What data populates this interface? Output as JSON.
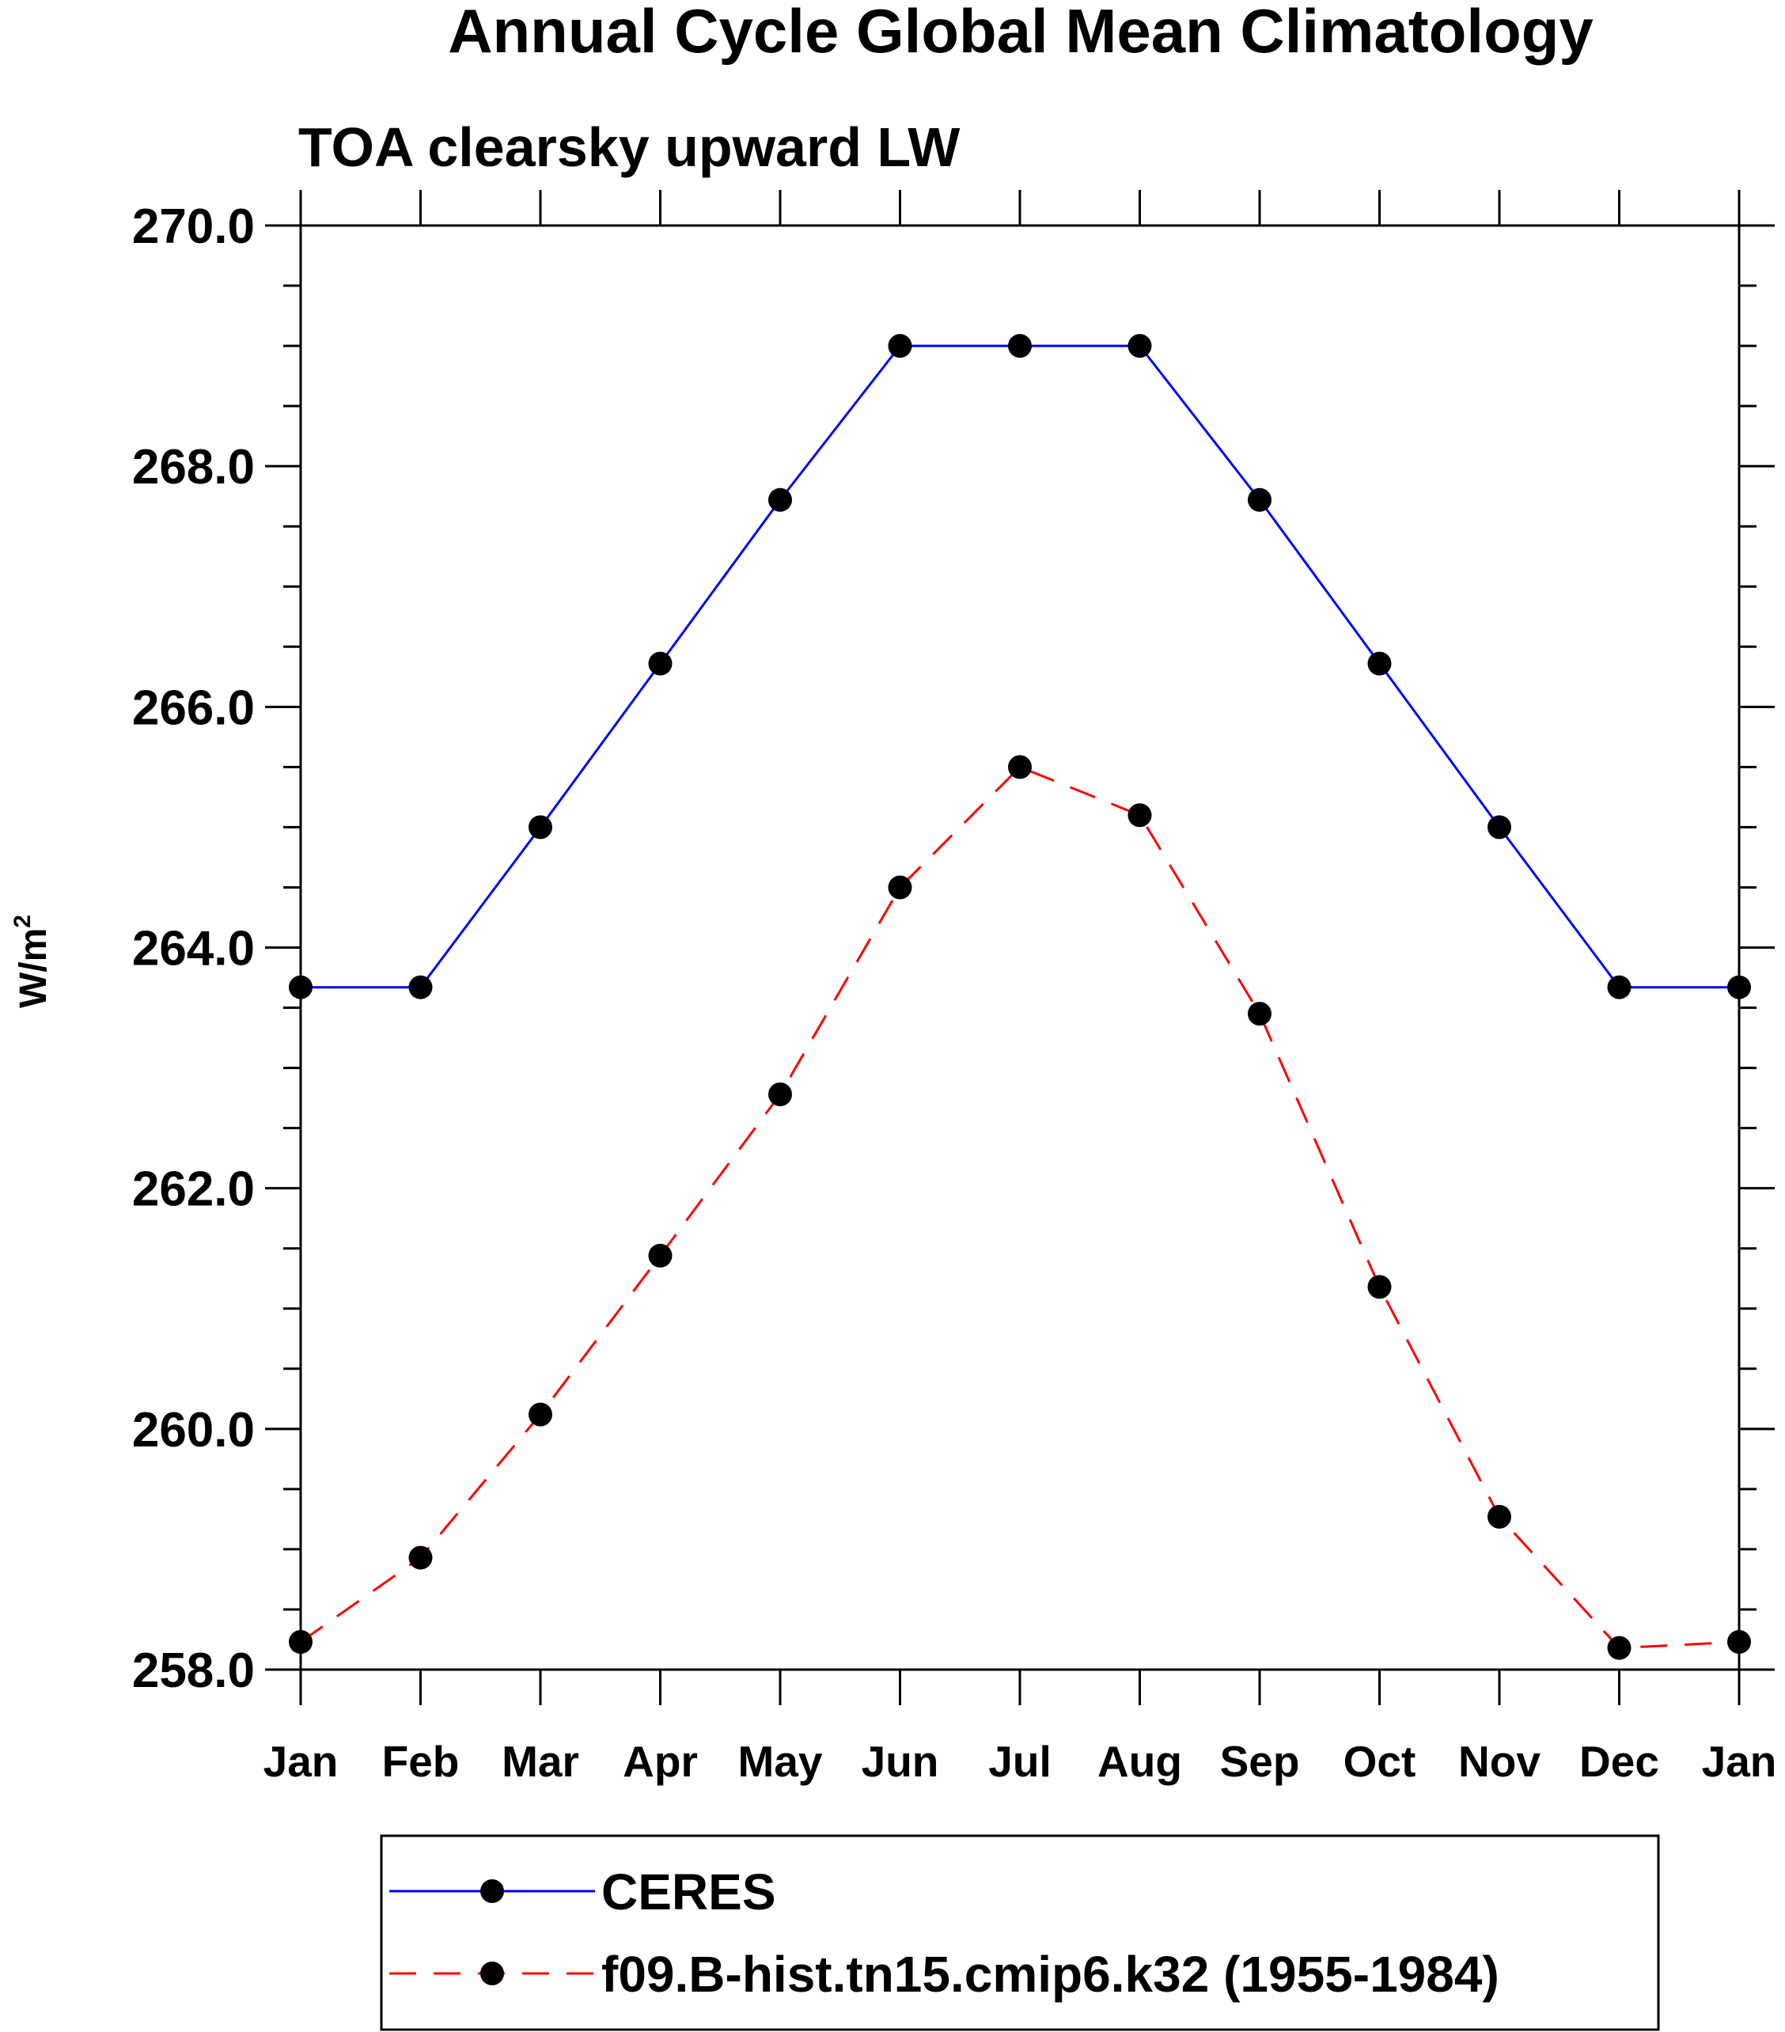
{
  "chart_data": {
    "type": "line",
    "title": "Annual Cycle Global Mean Climatology",
    "subtitle": "TOA clearsky upward LW",
    "ylabel": "W/m",
    "ylabel_superscript": "2",
    "xlabel": "",
    "categories": [
      "Jan",
      "Feb",
      "Mar",
      "Apr",
      "May",
      "Jun",
      "Jul",
      "Aug",
      "Sep",
      "Oct",
      "Nov",
      "Dec",
      "Jan"
    ],
    "ylim": [
      258.0,
      270.0
    ],
    "ytick_values": [
      258.0,
      260.0,
      262.0,
      264.0,
      266.0,
      268.0,
      270.0
    ],
    "ytick_labels": [
      "258.0",
      "260.0",
      "262.0",
      "264.0",
      "266.0",
      "268.0",
      "270.0"
    ],
    "yminor_step": 0.5,
    "grid": false,
    "legend_position": "bottom",
    "series": [
      {
        "name": "CERES",
        "color": "#0000ff",
        "line_style": "solid",
        "marker": "filled-circle",
        "values": [
          263.67,
          263.67,
          265.0,
          266.36,
          267.72,
          269.0,
          269.0,
          269.0,
          267.72,
          266.36,
          265.0,
          263.67,
          263.67
        ]
      },
      {
        "name": "f09.B-hist.tn15.cmip6.k32 (1955-1984)",
        "color": "#ff0000",
        "line_style": "dashed",
        "marker": "filled-circle",
        "values": [
          258.23,
          258.93,
          260.12,
          261.44,
          262.78,
          264.5,
          265.5,
          265.1,
          263.45,
          261.18,
          259.27,
          258.18,
          258.23
        ]
      }
    ]
  }
}
